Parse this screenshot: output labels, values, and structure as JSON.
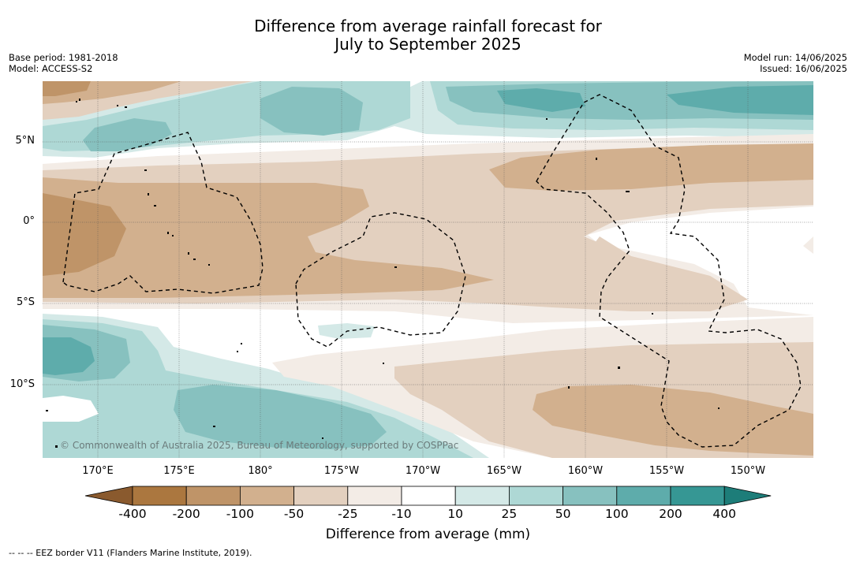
{
  "title_line1": "Difference from average rainfall forecast for",
  "title_line2": "July to September 2025",
  "meta_left": {
    "base_period": "Base period: 1981-2018",
    "model": "Model: ACCESS-S2"
  },
  "meta_right": {
    "model_run": "Model run: 14/06/2025",
    "issued": "Issued: 16/06/2025"
  },
  "latitude_labels": [
    "5°N",
    "0°",
    "5°S",
    "10°S"
  ],
  "longitude_labels": [
    "170°E",
    "175°E",
    "180°",
    "175°W",
    "170°W",
    "165°W",
    "160°W",
    "155°W",
    "150°W"
  ],
  "copyright": "© Commonwealth of Australia 2025, Bureau of Meteorology, supported by COSPPac",
  "colorbar": {
    "tick_labels": [
      "-400",
      "-200",
      "-100",
      "-50",
      "-25",
      "-10",
      "10",
      "25",
      "50",
      "100",
      "200",
      "400"
    ],
    "colors": [
      "#8a5a2e",
      "#ab773f",
      "#bf9468",
      "#d2b08e",
      "#e3d0bf",
      "#f3ece6",
      "#ffffff",
      "#d4e9e7",
      "#aed8d5",
      "#87c1bf",
      "#5eacab",
      "#369794",
      "#1d7d79"
    ],
    "title": "Difference from average (mm)"
  },
  "footnote": "-- -- -- EEZ border V11 (Flanders Marine Institute, 2019)."
}
